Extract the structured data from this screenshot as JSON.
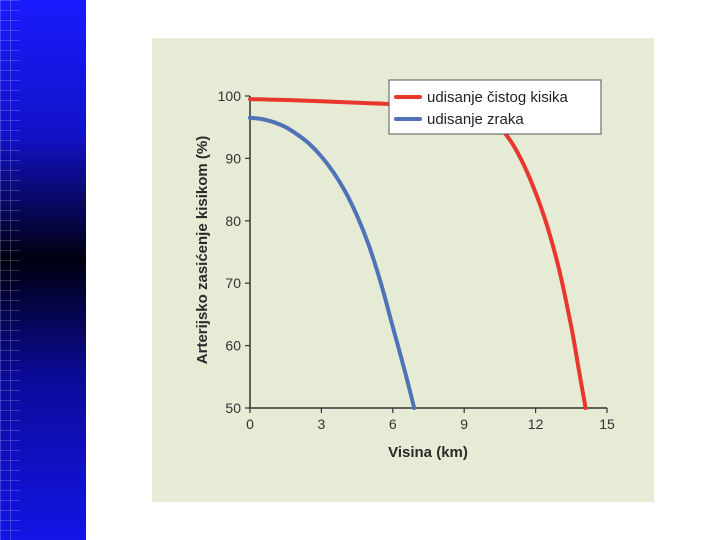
{
  "chart_data": {
    "type": "line",
    "xlabel": "Visina (km)",
    "ylabel": "Arterijsko zasićenje kisikom (%)",
    "xlim": [
      0,
      15
    ],
    "ylim": [
      50,
      100
    ],
    "xticks": [
      "0",
      "3",
      "6",
      "9",
      "12",
      "15"
    ],
    "yticks": [
      "50",
      "60",
      "70",
      "80",
      "90",
      "100"
    ],
    "grid": false,
    "legend_position": "top-right",
    "series": [
      {
        "name": "udisanje čistog kisika",
        "color": "#e8372c",
        "x": [
          0,
          2,
          4,
          6,
          8,
          9.1,
          9.5,
          10,
          10.5,
          11,
          11.5,
          12,
          12.5,
          13,
          13.5,
          13.8,
          14.1
        ],
        "y": [
          99.5,
          99.3,
          99.0,
          98.7,
          98.4,
          98.2,
          97.8,
          96.8,
          95.0,
          92.5,
          89.0,
          84.5,
          79.0,
          72.0,
          63.0,
          56.5,
          50.0
        ]
      },
      {
        "name": "udisanje zraka",
        "color": "#4f73b6",
        "x": [
          0,
          0.5,
          1,
          1.5,
          2,
          2.5,
          3,
          3.5,
          4,
          4.5,
          5,
          5.5,
          6,
          6.5,
          6.9
        ],
        "y": [
          96.5,
          96.3,
          95.8,
          95.0,
          93.8,
          92.3,
          90.3,
          87.8,
          84.7,
          80.8,
          76.0,
          70.0,
          63.0,
          56.0,
          50.0
        ]
      }
    ]
  }
}
